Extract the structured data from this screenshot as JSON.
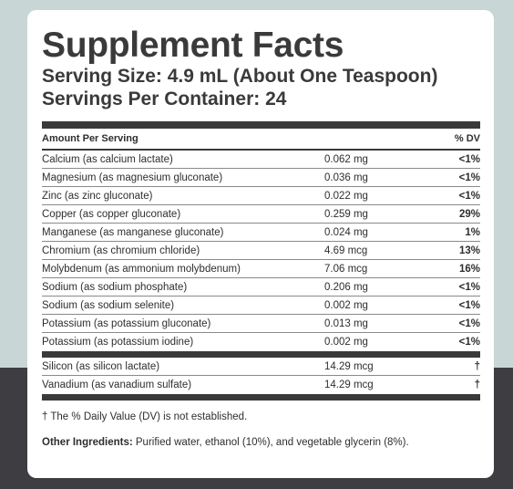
{
  "label": {
    "title": "Supplement Facts",
    "serving_size": "Serving Size: 4.9 mL (About One Teaspoon)",
    "servings_per_container": "Servings Per Container: 24",
    "header_amount": "Amount Per Serving",
    "header_dv": "% DV",
    "nutrients": [
      {
        "name": "Calcium (as calcium lactate)",
        "amount": "0.062 mg",
        "dv": "<1%"
      },
      {
        "name": "Magnesium (as magnesium gluconate)",
        "amount": "0.036 mg",
        "dv": "<1%"
      },
      {
        "name": "Zinc (as zinc gluconate)",
        "amount": "0.022 mg",
        "dv": "<1%"
      },
      {
        "name": "Copper (as copper gluconate)",
        "amount": "0.259 mg",
        "dv": "29%"
      },
      {
        "name": "Manganese (as manganese gluconate)",
        "amount": "0.024 mg",
        "dv": "1%"
      },
      {
        "name": "Chromium (as chromium chloride)",
        "amount": "4.69 mcg",
        "dv": "13%"
      },
      {
        "name": "Molybdenum (as ammonium molybdenum)",
        "amount": "7.06 mcg",
        "dv": "16%"
      },
      {
        "name": "Sodium (as sodium phosphate)",
        "amount": "0.206 mg",
        "dv": "<1%"
      },
      {
        "name": "Sodium (as sodium selenite)",
        "amount": "0.002 mg",
        "dv": "<1%"
      },
      {
        "name": "Potassium (as potassium gluconate)",
        "amount": "0.013 mg",
        "dv": "<1%"
      },
      {
        "name": "Potassium (as potassium iodine)",
        "amount": "0.002 mg",
        "dv": "<1%"
      }
    ],
    "other_nutrients": [
      {
        "name": "Silicon (as silicon lactate)",
        "amount": "14.29 mcg",
        "dv": "†"
      },
      {
        "name": "Vanadium (as vanadium sulfate)",
        "amount": "14.29 mcg",
        "dv": "†"
      }
    ],
    "footnote": "† The % Daily Value (DV) is not established.",
    "other_ingredients_label": "Other Ingredients:",
    "other_ingredients_text": " Purified water, ethanol (10%), and vegetable glycerin (8%)."
  },
  "colors": {
    "background_top": "#c9d6d6",
    "background_bottom": "#3e3d42",
    "rule": "#3a3a3a"
  }
}
